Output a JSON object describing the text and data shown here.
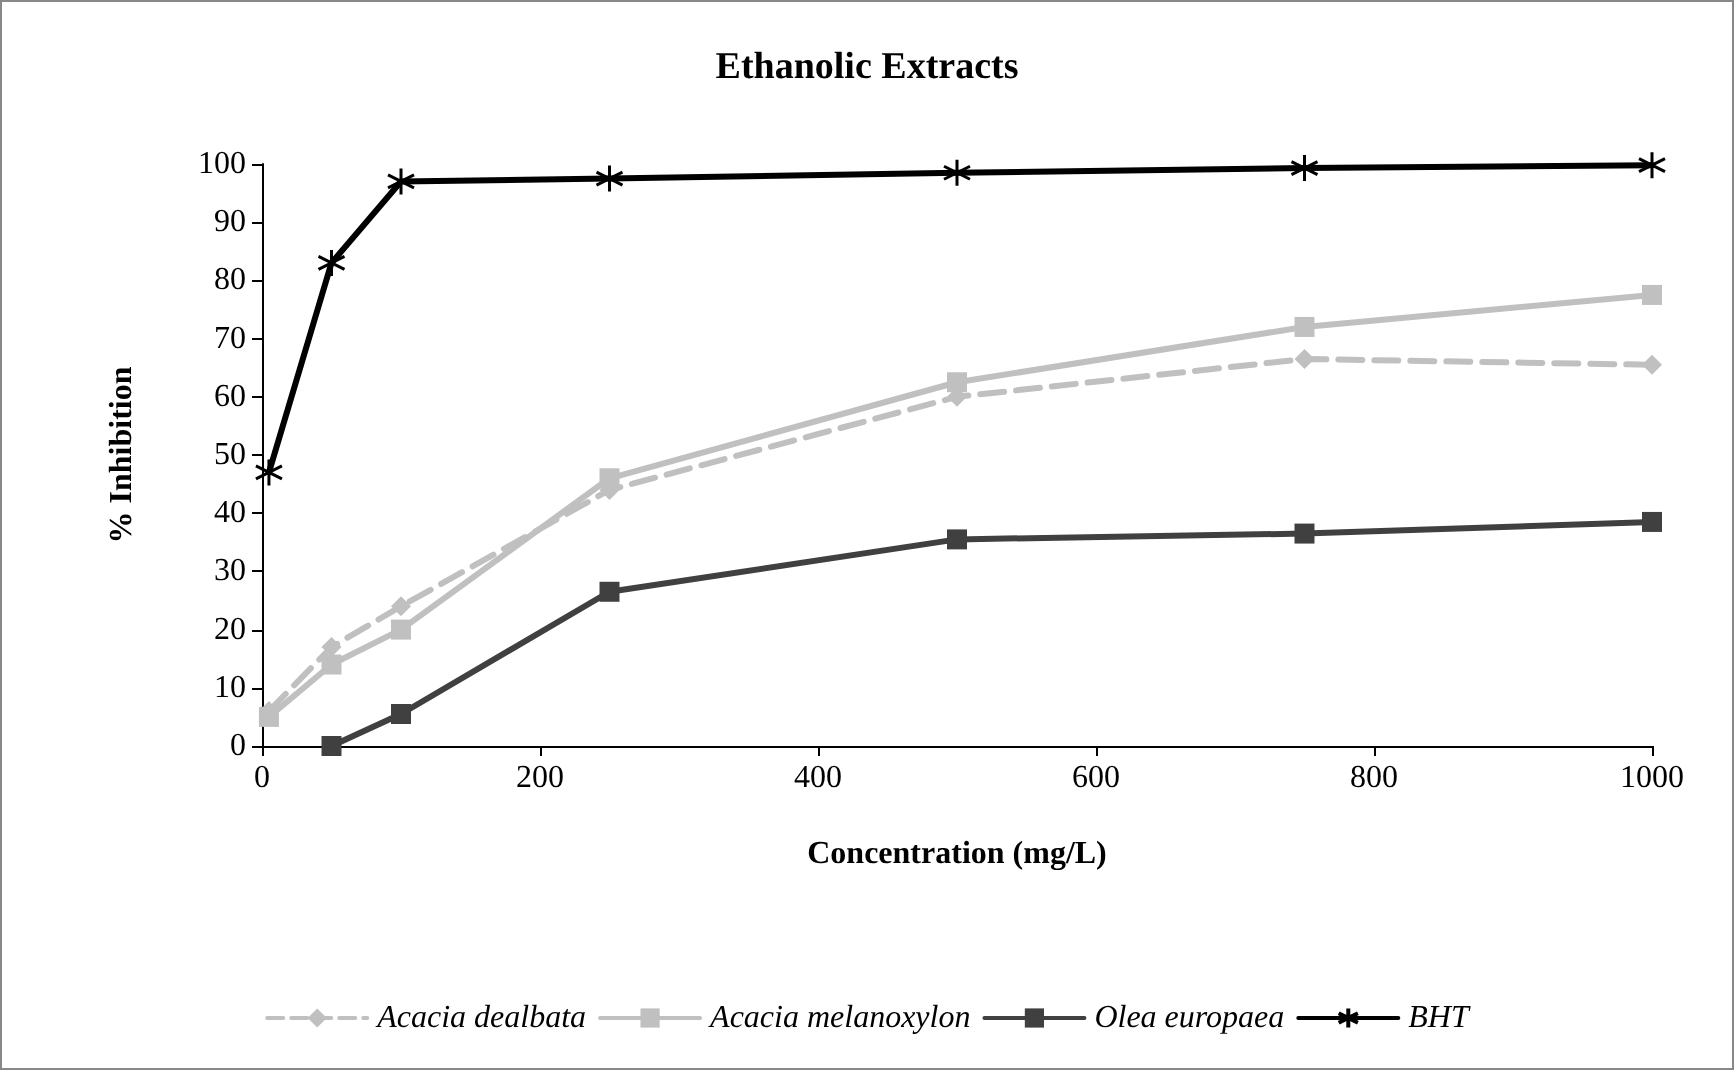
{
  "chart_data": {
    "type": "line",
    "title": "Ethanolic Extracts",
    "xlabel": "Concentration (mg/L)",
    "ylabel": "% Inhibition",
    "xlim": [
      0,
      1000
    ],
    "xticks": [
      0,
      200,
      400,
      600,
      800,
      1000
    ],
    "ylim": [
      0,
      100
    ],
    "yticks": [
      0,
      10,
      20,
      30,
      40,
      50,
      60,
      70,
      80,
      90,
      100
    ],
    "grid": false,
    "legend": "bottom",
    "series": [
      {
        "name": "Acacia dealbata",
        "color": "#c0c0c0",
        "marker": "diamond",
        "line_style": "dashed",
        "x": [
          5,
          50,
          100,
          250,
          500,
          750,
          1000
        ],
        "values": [
          6,
          17,
          24,
          44,
          60,
          66.5,
          65.5
        ]
      },
      {
        "name": "Acacia melanoxylon",
        "color": "#c0c0c0",
        "marker": "square",
        "line_style": "solid",
        "x": [
          5,
          50,
          100,
          250,
          500,
          750,
          1000
        ],
        "values": [
          5,
          14,
          20,
          46,
          62.5,
          72,
          77.5
        ]
      },
      {
        "name": "Olea europaea",
        "color": "#404040",
        "marker": "square",
        "line_style": "solid",
        "x": [
          50,
          100,
          250,
          500,
          750,
          1000
        ],
        "values": [
          0,
          5.5,
          26.5,
          35.5,
          36.5,
          38.5
        ]
      },
      {
        "name": "BHT",
        "color": "#000000",
        "marker": "cross",
        "line_style": "solid",
        "x": [
          5,
          50,
          100,
          250,
          500,
          750,
          1000
        ],
        "values": [
          47,
          83,
          97,
          97.5,
          98.5,
          99.3,
          99.8
        ]
      }
    ]
  }
}
